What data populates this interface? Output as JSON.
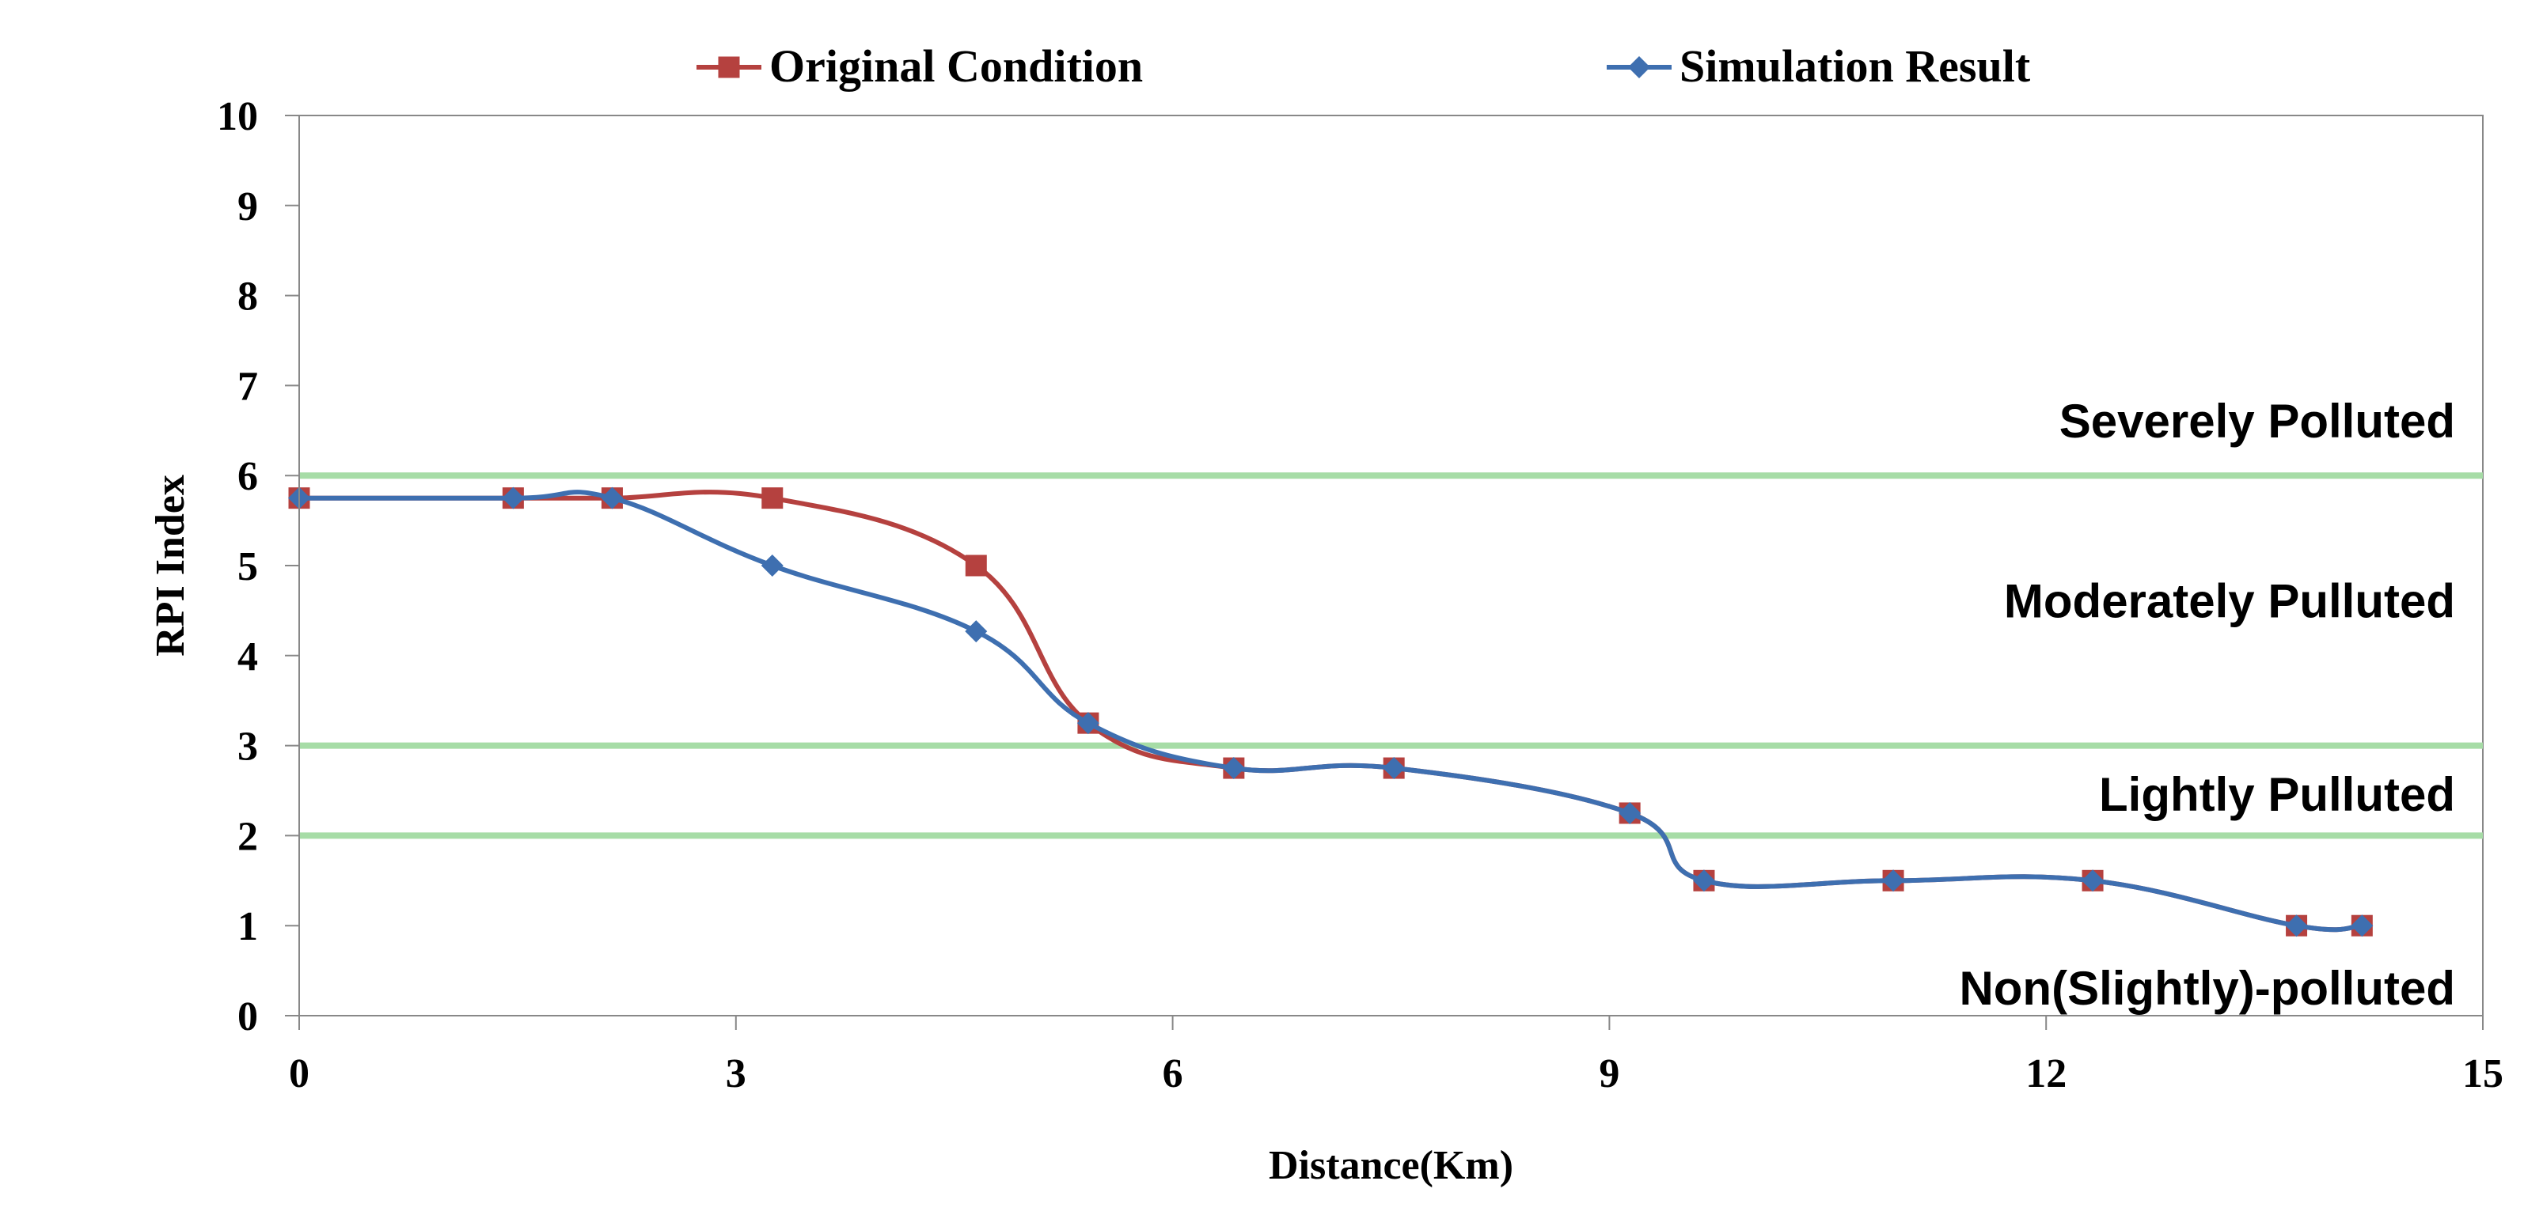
{
  "chart_data": {
    "type": "line",
    "title": "",
    "xlabel": "Distance(Km)",
    "ylabel": "RPI Index",
    "xlim": [
      0,
      15
    ],
    "ylim": [
      0,
      10
    ],
    "xticks": [
      0,
      3,
      6,
      9,
      12,
      15
    ],
    "yticks": [
      0,
      1,
      2,
      3,
      4,
      5,
      6,
      7,
      8,
      9,
      10
    ],
    "grid": false,
    "legend_position": "top",
    "series": [
      {
        "name": "Original Condition",
        "color": "#b5413f",
        "marker": "square",
        "x": [
          0,
          1.47,
          2.15,
          3.25,
          4.65,
          5.42,
          6.42,
          7.52,
          9.14,
          9.65,
          10.95,
          12.32,
          13.72,
          14.17
        ],
        "y": [
          5.75,
          5.75,
          5.75,
          5.75,
          5.0,
          3.25,
          2.75,
          2.75,
          2.25,
          1.5,
          1.5,
          1.5,
          1.0,
          1.0
        ]
      },
      {
        "name": "Simulation Result",
        "color": "#3e6fb0",
        "marker": "diamond",
        "x": [
          0,
          1.47,
          2.15,
          3.25,
          4.65,
          5.42,
          6.42,
          7.52,
          9.14,
          9.65,
          10.95,
          12.32,
          13.72,
          14.17
        ],
        "y": [
          5.75,
          5.75,
          5.75,
          5.0,
          4.27,
          3.25,
          2.75,
          2.75,
          2.25,
          1.5,
          1.5,
          1.5,
          1.0,
          1.0
        ]
      }
    ],
    "thresholds": [
      {
        "value": 6,
        "color": "#a6dca6"
      },
      {
        "value": 3,
        "color": "#a6dca6"
      },
      {
        "value": 2,
        "color": "#a6dca6"
      }
    ],
    "annotations": [
      {
        "text": "Severely Polluted",
        "y": 6.6
      },
      {
        "text": "Moderately Pulluted",
        "y": 4.6
      },
      {
        "text": "Lightly Pulluted",
        "y": 2.45
      },
      {
        "text": "Non(Slightly)-polluted",
        "y": 0.3
      }
    ]
  }
}
